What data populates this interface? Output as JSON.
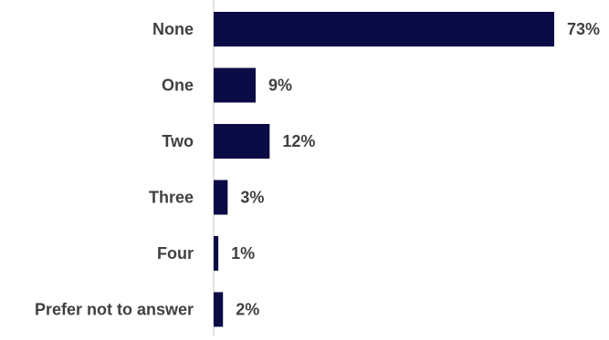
{
  "colors": {
    "bar": "#0b0c45",
    "axis": "#d9d9d9",
    "label": "#404040",
    "value": "#404040"
  },
  "chart_data": {
    "type": "bar",
    "orientation": "horizontal",
    "categories": [
      "None",
      "One",
      "Two",
      "Three",
      "Four",
      "Prefer not to answer"
    ],
    "values": [
      73,
      9,
      12,
      3,
      1,
      2
    ],
    "data_labels": [
      "73%",
      "9%",
      "12%",
      "3%",
      "1%",
      "2%"
    ],
    "unit": "%",
    "title": "",
    "xlabel": "",
    "ylabel": "",
    "xlim": [
      0,
      73
    ],
    "grid": false,
    "legend": "none"
  }
}
